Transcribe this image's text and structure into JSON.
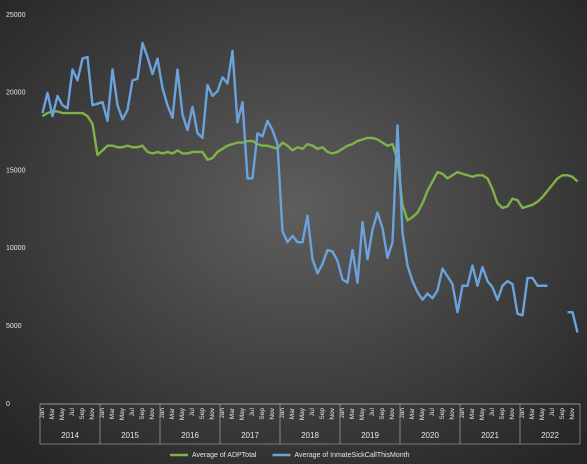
{
  "chart_data": {
    "type": "line",
    "categories": [
      "Jan",
      null,
      "Mar",
      null,
      "May",
      null,
      "Jul",
      null,
      "Sep",
      null,
      "Nov",
      null,
      "Jan",
      null,
      "Mar",
      null,
      "May",
      null,
      "Jul",
      null,
      "Sep",
      null,
      "Nov",
      null,
      "Jan",
      null,
      "Mar",
      null,
      "May",
      null,
      "Jul",
      null,
      "Sep",
      null,
      "Nov",
      null,
      "Jan",
      null,
      "Mar",
      null,
      "May",
      null,
      "Jul",
      null,
      "Sep",
      null,
      "Nov",
      null,
      "Jan",
      null,
      "Mar",
      null,
      "May",
      null,
      "Jul",
      null,
      "Sep",
      null,
      "Nov",
      null,
      "Jan",
      null,
      "Mar",
      null,
      "May",
      null,
      "Jul",
      null,
      "Sep",
      null,
      "Nov",
      null,
      "Jan",
      null,
      "Mar",
      null,
      "May",
      null,
      "Jul",
      null,
      "Sep",
      null,
      "Nov",
      null,
      "Jan",
      null,
      "Mar",
      null,
      "May",
      null,
      "Jul",
      null,
      "Sep",
      null,
      "Nov",
      null,
      "Jan",
      null,
      "Mar",
      null,
      "May",
      null,
      "Jul",
      null,
      "Sep",
      null,
      "Nov",
      null
    ],
    "year_groups": [
      "2014",
      "2015",
      "2016",
      "2017",
      "2018",
      "2019",
      "2020",
      "2021",
      "2022"
    ],
    "series": [
      {
        "name": "Average of ADPTotal",
        "color": "#7fb347",
        "values": [
          18500,
          18700,
          18800,
          18800,
          18700,
          18700,
          18700,
          18700,
          18700,
          18500,
          18000,
          16000,
          16300,
          16600,
          16600,
          16500,
          16500,
          16600,
          16500,
          16500,
          16600,
          16200,
          16100,
          16200,
          16100,
          16200,
          16100,
          16300,
          16100,
          16100,
          16200,
          16200,
          16200,
          15700,
          15800,
          16200,
          16400,
          16600,
          16700,
          16800,
          16800,
          16900,
          16900,
          16700,
          16600,
          16600,
          16500,
          16400,
          16800,
          16600,
          16300,
          16500,
          16400,
          16700,
          16600,
          16400,
          16500,
          16200,
          16100,
          16200,
          16400,
          16600,
          16700,
          16900,
          17000,
          17100,
          17100,
          17000,
          16800,
          16600,
          16700,
          15700,
          12800,
          11800,
          12000,
          12300,
          12900,
          13700,
          14300,
          14900,
          14800,
          14500,
          14700,
          14900,
          14800,
          14700,
          14600,
          14700,
          14700,
          14500,
          13800,
          12900,
          12600,
          12700,
          13200,
          13100,
          12600,
          12700,
          12800,
          13000,
          13300,
          13700,
          14100,
          14500,
          14700,
          14700,
          14600,
          14300
        ]
      },
      {
        "name": "Average of InmateSickCallThisMonth",
        "color": "#6aa3dc",
        "values": [
          18700,
          20000,
          18500,
          19800,
          19200,
          19000,
          21500,
          20800,
          22200,
          22300,
          19200,
          19300,
          19400,
          18200,
          21500,
          19200,
          18300,
          18900,
          20800,
          20900,
          23200,
          22300,
          21200,
          22200,
          20300,
          19200,
          18400,
          21500,
          18600,
          17600,
          19100,
          17400,
          17100,
          20500,
          19800,
          20100,
          21000,
          20600,
          22700,
          18100,
          19400,
          14500,
          14500,
          17400,
          17200,
          18200,
          17600,
          16700,
          11100,
          10400,
          10800,
          10400,
          10400,
          12100,
          9300,
          8400,
          9000,
          9900,
          9800,
          9200,
          8000,
          7800,
          9900,
          7800,
          11700,
          9300,
          11200,
          12300,
          11300,
          9400,
          10400,
          17900,
          11000,
          8900,
          7900,
          7200,
          6700,
          7100,
          6800,
          7300,
          8700,
          8200,
          7700,
          5900,
          7600,
          7600,
          8900,
          7600,
          8800,
          7900,
          7500,
          6700,
          7600,
          7900,
          7700,
          5800,
          5700,
          8100,
          8100,
          7600,
          7600,
          7600,
          null,
          null,
          null,
          5900,
          5900,
          4600
        ]
      }
    ],
    "ylim": [
      0,
      25000
    ],
    "yticks": [
      0,
      5000,
      10000,
      15000,
      20000,
      25000
    ],
    "grid": false
  }
}
